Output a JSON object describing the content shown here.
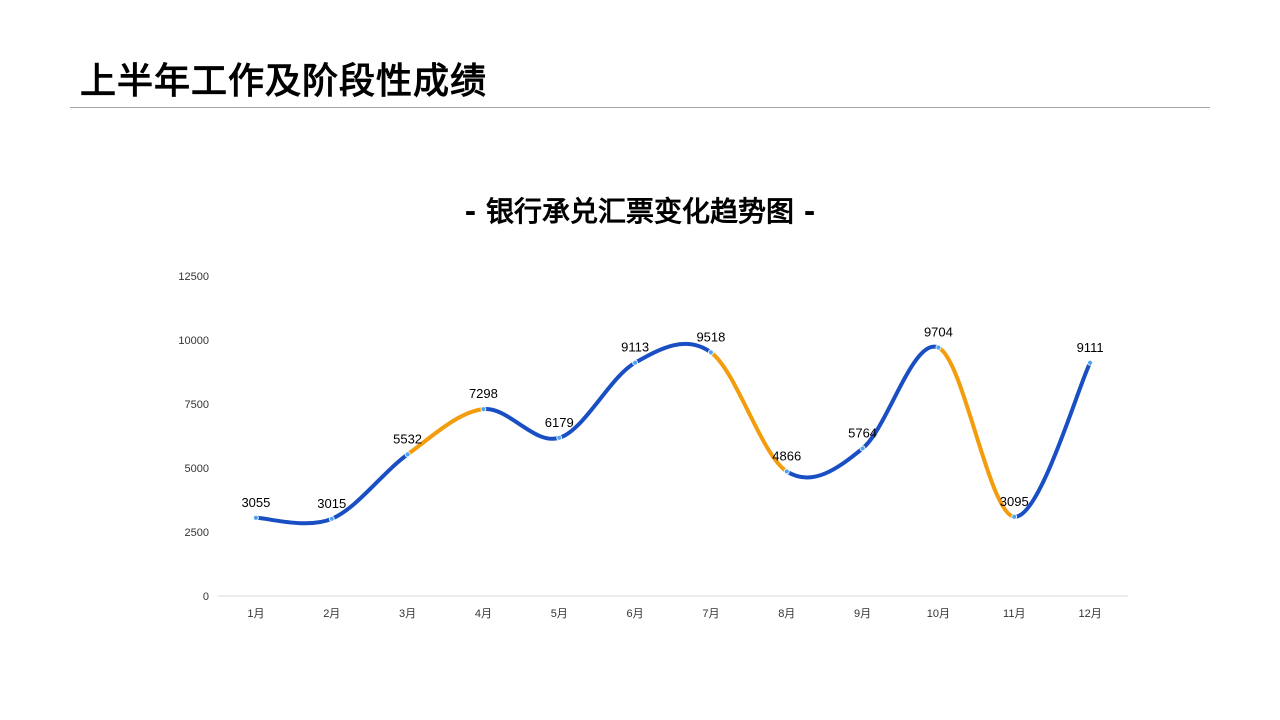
{
  "slide": {
    "title": "上半年工作及阶段性成绩"
  },
  "colors": {
    "line_primary": "#1a4fc4",
    "line_highlight": "#f39c0c",
    "axis": "#d9d9d9",
    "marker": "#4ea3f0"
  },
  "chart_data": {
    "type": "line",
    "title": "- 银行承兑汇票变化趋势图 -",
    "xlabel": "",
    "ylabel": "",
    "categories": [
      "1月",
      "2月",
      "3月",
      "4月",
      "5月",
      "6月",
      "7月",
      "8月",
      "9月",
      "10月",
      "11月",
      "12月"
    ],
    "values": [
      3055,
      3015,
      5532,
      7298,
      6179,
      9113,
      9518,
      4866,
      5764,
      9704,
      3095,
      9111
    ],
    "ylim": [
      0,
      12500
    ],
    "yticks": [
      0,
      2500,
      5000,
      7500,
      10000,
      12500
    ],
    "smooth": true,
    "highlight_segments": [
      [
        2,
        3
      ],
      [
        6,
        7
      ],
      [
        9,
        10
      ]
    ],
    "grid": false,
    "legend": "none"
  }
}
